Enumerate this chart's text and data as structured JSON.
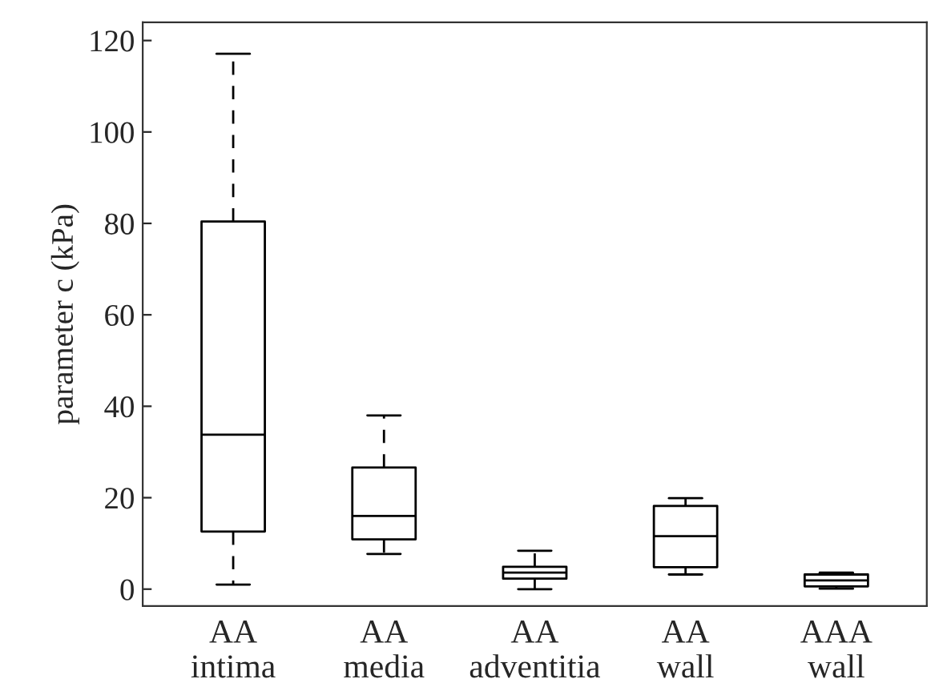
{
  "chart_data": {
    "type": "box",
    "ylabel": "parameter c (kPa)",
    "categories": [
      "AA\nintima",
      "AA\nmedia",
      "AA\nadventitia",
      "AA\nwall",
      "AAA\nwall"
    ],
    "boxes": [
      {
        "low": 1.0,
        "q1": 12.6,
        "median": 33.8,
        "q3": 80.4,
        "high": 117.1
      },
      {
        "low": 7.7,
        "q1": 10.9,
        "median": 16.0,
        "q3": 26.6,
        "high": 38.0
      },
      {
        "low": 0.0,
        "q1": 2.3,
        "median": 3.6,
        "q3": 4.9,
        "high": 8.4
      },
      {
        "low": 3.2,
        "q1": 4.8,
        "median": 11.6,
        "q3": 18.2,
        "high": 19.9
      },
      {
        "low": 0.1,
        "q1": 0.6,
        "median": 1.9,
        "q3": 3.2,
        "high": 3.6
      }
    ],
    "color": "#000000",
    "line_style": "dashed",
    "ylim": [
      -3.7,
      124
    ],
    "yticks": [
      0,
      20,
      40,
      60,
      80,
      100,
      120
    ],
    "grid": false
  }
}
